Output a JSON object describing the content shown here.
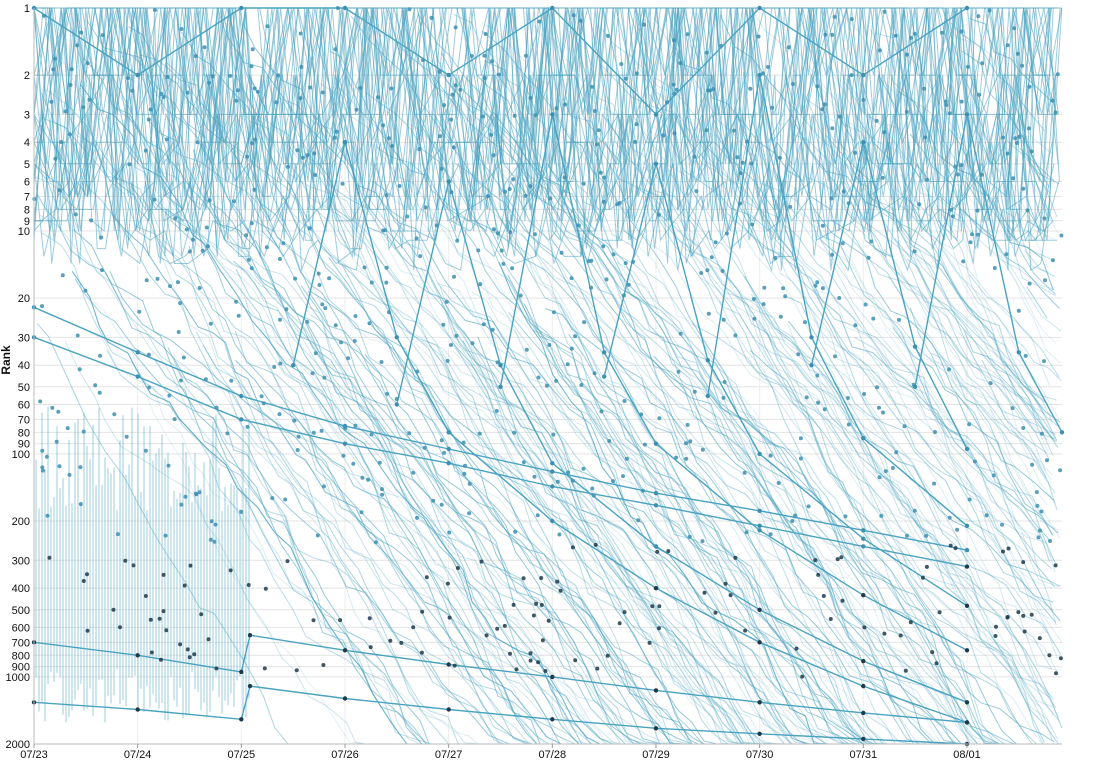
{
  "chart_data": {
    "type": "line",
    "title": "",
    "ylabel": "Rank",
    "xlabel": "",
    "y_scale": "log",
    "y_reversed": true,
    "ylim": [
      1,
      2000
    ],
    "xlim": [
      "2024-07-23",
      "2024-08-01T22:00"
    ],
    "grid": true,
    "x_ticks": [
      "07/23",
      "07/24",
      "07/25",
      "07/26",
      "07/27",
      "07/28",
      "07/29",
      "07/30",
      "07/31",
      "08/01"
    ],
    "y_ticks": [
      1,
      2,
      3,
      4,
      5,
      6,
      7,
      8,
      9,
      10,
      20,
      30,
      40,
      50,
      60,
      70,
      80,
      90,
      100,
      200,
      300,
      400,
      500,
      600,
      700,
      800,
      900,
      1000,
      2000
    ],
    "line_color": "#4aa3c0",
    "point_color": "#3d8fb0",
    "point_color_low_rank": "#1f3a4a",
    "series": [
      {
        "values": [
          [
            "2024-07-25T12:00",
            40
          ],
          [
            "2024-07-26T00:00",
            4
          ],
          [
            "2024-07-26T12:00",
            30
          ],
          [
            "2024-07-27T00:00",
            80
          ],
          [
            "2024-07-28T00:00",
            200
          ],
          [
            "2024-07-29T00:00",
            400
          ],
          [
            "2024-07-30T00:00",
            700
          ],
          [
            "2024-07-31T00:00",
            1100
          ],
          [
            "2024-08-01T00:00",
            1600
          ]
        ]
      },
      {
        "values": [
          [
            "2024-07-26T12:00",
            60
          ],
          [
            "2024-07-27T00:00",
            6
          ],
          [
            "2024-07-27T12:00",
            40
          ],
          [
            "2024-07-28T00:00",
            110
          ],
          [
            "2024-07-29T00:00",
            260
          ],
          [
            "2024-07-30T00:00",
            500
          ],
          [
            "2024-07-31T00:00",
            850
          ],
          [
            "2024-08-01T00:00",
            1300
          ]
        ]
      },
      {
        "values": [
          [
            "2024-07-27T12:00",
            50
          ],
          [
            "2024-07-28T00:00",
            3
          ],
          [
            "2024-07-28T12:00",
            35
          ],
          [
            "2024-07-29T00:00",
            90
          ],
          [
            "2024-07-30T00:00",
            220
          ],
          [
            "2024-07-31T00:00",
            430
          ],
          [
            "2024-08-01T00:00",
            760
          ]
        ]
      },
      {
        "values": [
          [
            "2024-07-28T12:00",
            45
          ],
          [
            "2024-07-29T00:00",
            5
          ],
          [
            "2024-07-29T12:00",
            38
          ],
          [
            "2024-07-30T00:00",
            100
          ],
          [
            "2024-07-31T00:00",
            240
          ],
          [
            "2024-08-01T00:00",
            480
          ]
        ]
      },
      {
        "values": [
          [
            "2024-07-29T12:00",
            55
          ],
          [
            "2024-07-30T00:00",
            2
          ],
          [
            "2024-07-30T12:00",
            30
          ],
          [
            "2024-07-31T00:00",
            85
          ],
          [
            "2024-08-01T00:00",
            210
          ]
        ]
      },
      {
        "values": [
          [
            "2024-07-30T12:00",
            40
          ],
          [
            "2024-07-31T00:00",
            4
          ],
          [
            "2024-07-31T12:00",
            33
          ],
          [
            "2024-08-01T00:00",
            95
          ]
        ]
      },
      {
        "values": [
          [
            "2024-07-31T12:00",
            50
          ],
          [
            "2024-08-01T00:00",
            3
          ],
          [
            "2024-08-01T12:00",
            35
          ],
          [
            "2024-08-01T22:00",
            80
          ]
        ]
      },
      {
        "values": [
          [
            "2024-07-23T00:00",
            30
          ],
          [
            "2024-07-24T00:00",
            45
          ],
          [
            "2024-07-25T00:00",
            70
          ],
          [
            "2024-07-26T00:00",
            90
          ],
          [
            "2024-07-27T00:00",
            110
          ],
          [
            "2024-07-28T00:00",
            140
          ],
          [
            "2024-07-29T00:00",
            170
          ],
          [
            "2024-07-30T00:00",
            210
          ],
          [
            "2024-07-31T00:00",
            260
          ],
          [
            "2024-08-01T00:00",
            320
          ]
        ]
      },
      {
        "values": [
          [
            "2024-07-23T00:00",
            22
          ],
          [
            "2024-07-24T00:00",
            35
          ],
          [
            "2024-07-25T00:00",
            55
          ],
          [
            "2024-07-26T00:00",
            75
          ],
          [
            "2024-07-27T00:00",
            95
          ],
          [
            "2024-07-28T00:00",
            120
          ],
          [
            "2024-07-29T00:00",
            150
          ],
          [
            "2024-07-30T00:00",
            180
          ],
          [
            "2024-07-31T00:00",
            220
          ],
          [
            "2024-08-01T00:00",
            270
          ]
        ]
      },
      {
        "values": [
          [
            "2024-07-23T00:00",
            1300
          ],
          [
            "2024-07-24T00:00",
            1400
          ],
          [
            "2024-07-25T00:00",
            1550
          ],
          [
            "2024-07-25T02:00",
            1100
          ],
          [
            "2024-07-26T00:00",
            1250
          ],
          [
            "2024-07-27T00:00",
            1400
          ],
          [
            "2024-07-28T00:00",
            1550
          ],
          [
            "2024-07-29T00:00",
            1700
          ],
          [
            "2024-07-30T00:00",
            1800
          ],
          [
            "2024-07-31T00:00",
            1900
          ],
          [
            "2024-08-01T00:00",
            2000
          ]
        ]
      },
      {
        "values": [
          [
            "2024-07-23T00:00",
            700
          ],
          [
            "2024-07-24T00:00",
            800
          ],
          [
            "2024-07-25T00:00",
            950
          ],
          [
            "2024-07-25T02:00",
            650
          ],
          [
            "2024-07-26T00:00",
            760
          ],
          [
            "2024-07-27T00:00",
            880
          ],
          [
            "2024-07-28T00:00",
            1000
          ],
          [
            "2024-07-29T00:00",
            1150
          ],
          [
            "2024-07-30T00:00",
            1300
          ],
          [
            "2024-07-31T00:00",
            1450
          ],
          [
            "2024-08-01T00:00",
            1600
          ]
        ]
      },
      {
        "values": [
          [
            "2024-07-23T00:00",
            1
          ],
          [
            "2024-07-24T00:00",
            2
          ],
          [
            "2024-07-25T00:00",
            1
          ],
          [
            "2024-07-26T00:00",
            1
          ],
          [
            "2024-07-27T00:00",
            2
          ],
          [
            "2024-07-28T00:00",
            1
          ],
          [
            "2024-07-29T00:00",
            3
          ],
          [
            "2024-07-30T00:00",
            1
          ],
          [
            "2024-07-31T00:00",
            2
          ],
          [
            "2024-08-01T00:00",
            1
          ]
        ]
      }
    ]
  }
}
